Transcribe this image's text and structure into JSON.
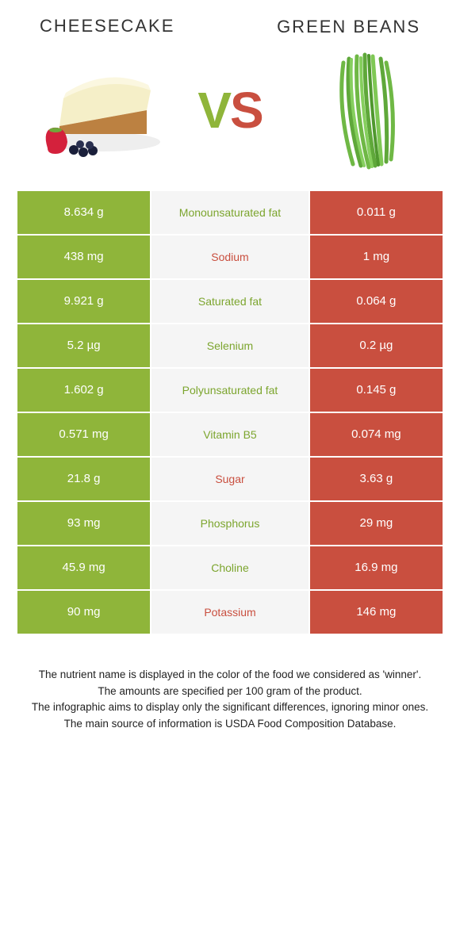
{
  "colors": {
    "green": "#8fb53a",
    "red": "#c94f3f",
    "mid_bg": "#f5f5f5",
    "mid_green_text": "#7ca52e",
    "mid_red_text": "#c94f3f"
  },
  "header": {
    "left_title": "Cheesecake",
    "right_title": "Green beans",
    "vs_v": "V",
    "vs_s": "S"
  },
  "rows": [
    {
      "left": "8.634 g",
      "label": "Monounsaturated fat",
      "right": "0.011 g",
      "left_bg": "green",
      "right_bg": "red",
      "label_color": "green"
    },
    {
      "left": "438 mg",
      "label": "Sodium",
      "right": "1 mg",
      "left_bg": "green",
      "right_bg": "red",
      "label_color": "red"
    },
    {
      "left": "9.921 g",
      "label": "Saturated fat",
      "right": "0.064 g",
      "left_bg": "green",
      "right_bg": "red",
      "label_color": "green"
    },
    {
      "left": "5.2 µg",
      "label": "Selenium",
      "right": "0.2 µg",
      "left_bg": "green",
      "right_bg": "red",
      "label_color": "green"
    },
    {
      "left": "1.602 g",
      "label": "Polyunsaturated fat",
      "right": "0.145 g",
      "left_bg": "green",
      "right_bg": "red",
      "label_color": "green"
    },
    {
      "left": "0.571 mg",
      "label": "Vitamin B5",
      "right": "0.074 mg",
      "left_bg": "green",
      "right_bg": "red",
      "label_color": "green"
    },
    {
      "left": "21.8 g",
      "label": "Sugar",
      "right": "3.63 g",
      "left_bg": "green",
      "right_bg": "red",
      "label_color": "red"
    },
    {
      "left": "93 mg",
      "label": "Phosphorus",
      "right": "29 mg",
      "left_bg": "green",
      "right_bg": "red",
      "label_color": "green"
    },
    {
      "left": "45.9 mg",
      "label": "Choline",
      "right": "16.9 mg",
      "left_bg": "green",
      "right_bg": "red",
      "label_color": "green"
    },
    {
      "left": "90 mg",
      "label": "Potassium",
      "right": "146 mg",
      "left_bg": "green",
      "right_bg": "red",
      "label_color": "red"
    }
  ],
  "footer": {
    "line1": "The nutrient name is displayed in the color of the food we considered as 'winner'.",
    "line2": "The amounts are specified per 100 gram of the product.",
    "line3": "The infographic aims to display only the significant differences, ignoring minor ones.",
    "line4": "The main source of information is USDA Food Composition Database."
  }
}
